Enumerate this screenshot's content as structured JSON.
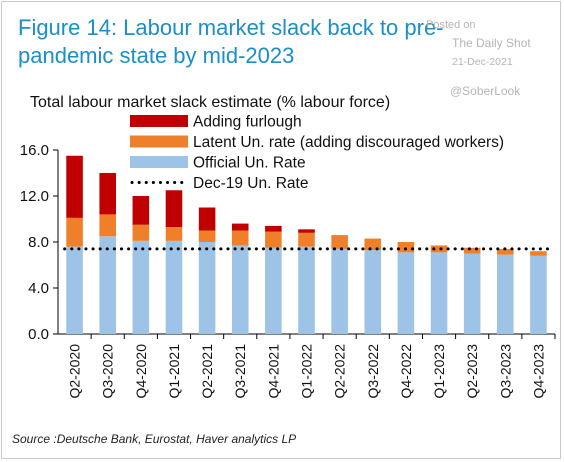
{
  "figure_title": "Figure 14: Labour market slack back to pre-pandemic state by mid-2023",
  "watermark": {
    "line1": "Posted on",
    "line2": "The Daily Shot",
    "date": "21-Dec-2021",
    "handle": "@SoberLook"
  },
  "source": "Source :Deutsche Bank, Eurostat, Haver analytics LP",
  "colors": {
    "title": "#1a8fc9",
    "furlough": "#c00000",
    "latent": "#f07f2a",
    "official": "#9dc3e6",
    "dotted": "#000000"
  },
  "chart_data": {
    "type": "bar",
    "stacked": true,
    "title": "Total labour market slack estimate (% labour force)",
    "categories": [
      "Q2-2020",
      "Q3-2020",
      "Q4-2020",
      "Q1-2021",
      "Q2-2021",
      "Q3-2021",
      "Q4-2021",
      "Q1-2022",
      "Q2-2022",
      "Q3-2022",
      "Q4-2022",
      "Q1-2023",
      "Q2-2023",
      "Q3-2023",
      "Q4-2023"
    ],
    "series": [
      {
        "name": "Official Un. Rate",
        "values": [
          7.6,
          8.5,
          8.1,
          8.1,
          8.0,
          7.7,
          7.5,
          7.6,
          7.4,
          7.3,
          7.1,
          7.1,
          7.0,
          6.9,
          6.8
        ]
      },
      {
        "name": "Latent Un. rate (adding discouraged workers)",
        "values": [
          2.5,
          1.9,
          1.4,
          1.2,
          1.0,
          1.3,
          1.4,
          1.2,
          1.2,
          1.0,
          0.9,
          0.6,
          0.5,
          0.5,
          0.4
        ]
      },
      {
        "name": "Adding furlough",
        "values": [
          5.4,
          3.6,
          2.5,
          3.2,
          2.0,
          0.6,
          0.5,
          0.3,
          0.0,
          0.0,
          0.0,
          0.0,
          0.0,
          0.0,
          0.0
        ]
      }
    ],
    "legend_order": [
      "Adding furlough",
      "Latent Un. rate (adding discouraged workers)",
      "Official Un. Rate",
      "Dec-19 Un. Rate"
    ],
    "reference_line": {
      "name": "Dec-19 Un. Rate",
      "value": 7.4
    },
    "ylim": [
      0,
      16
    ],
    "yticks": [
      "0.0",
      "4.0",
      "8.0",
      "12.0",
      "16.0"
    ],
    "ytick_values": [
      0,
      4,
      8,
      12,
      16
    ],
    "grid": false,
    "legend_placement": "top-left"
  }
}
